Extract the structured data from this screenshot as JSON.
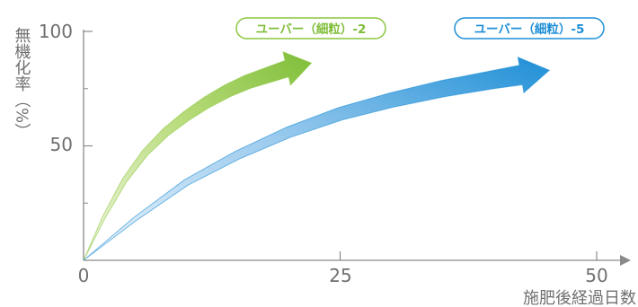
{
  "chart_data": {
    "type": "line",
    "xlabel": "施肥後経過日数",
    "ylabel": "無機化率（%）",
    "xlim": [
      0,
      52
    ],
    "ylim": [
      0,
      100
    ],
    "x_ticks": [
      0,
      25,
      50
    ],
    "y_ticks": [
      50,
      100
    ],
    "x_tick_labels": [
      "0",
      "25",
      "50"
    ],
    "y_tick_labels": [
      "50",
      "100"
    ],
    "grid": false,
    "legend_placement": "top",
    "series": [
      {
        "name": "ユーバー（細粒）-2",
        "color": "#8cc63f",
        "x": [
          0,
          2,
          4,
          6,
          8,
          10,
          12,
          14,
          16,
          18,
          20,
          21
        ],
        "y": [
          0,
          19,
          35,
          47,
          56,
          63,
          69,
          74,
          78,
          81,
          84,
          85
        ]
      },
      {
        "name": "ユーバー（細粒）-5",
        "color": "#1e8fd6",
        "x": [
          0,
          5,
          10,
          15,
          20,
          25,
          30,
          35,
          40,
          44
        ],
        "y": [
          0,
          18,
          34,
          46,
          56,
          64,
          70,
          75,
          79,
          82
        ]
      }
    ]
  }
}
